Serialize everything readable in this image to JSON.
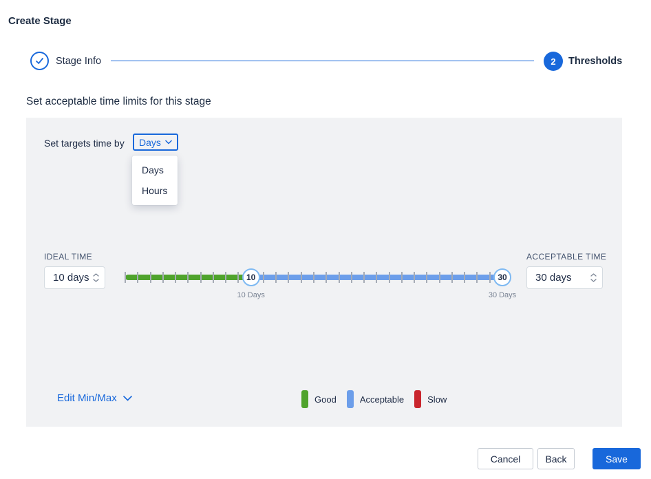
{
  "title": "Create Stage",
  "stepper": {
    "step1_label": "Stage Info",
    "step2_label": "Thresholds",
    "step2_number": "2"
  },
  "section_heading": "Set acceptable time limits for this stage",
  "panel": {
    "targets_label": "Set targets time by",
    "unit_dropdown": {
      "value": "Days",
      "options": [
        "Days",
        "Hours"
      ]
    },
    "ideal": {
      "label": "IDEAL TIME",
      "value": "10 days"
    },
    "acceptable": {
      "label": "ACCEPTABLE TIME",
      "value": "30 days"
    },
    "slider": {
      "min": 0,
      "max": 30,
      "tick_interval": 1,
      "ideal_value": 10,
      "acceptable_value": 30,
      "ideal_handle_label": "10",
      "acceptable_handle_label": "30",
      "ideal_axis_label": "10 Days",
      "acceptable_axis_label": "30 Days"
    },
    "edit_minmax_label": "Edit Min/Max",
    "legend": [
      {
        "label": "Good",
        "color": "#4FA32C"
      },
      {
        "label": "Acceptable",
        "color": "#6C9EEA"
      },
      {
        "label": "Slow",
        "color": "#C9252D"
      }
    ]
  },
  "footer": {
    "cancel_label": "Cancel",
    "back_label": "Back",
    "save_label": "Save"
  },
  "colors": {
    "primary": "#1868DB",
    "good": "#4FA32C",
    "acceptable": "#6C9EEA",
    "slow": "#C9252D"
  }
}
